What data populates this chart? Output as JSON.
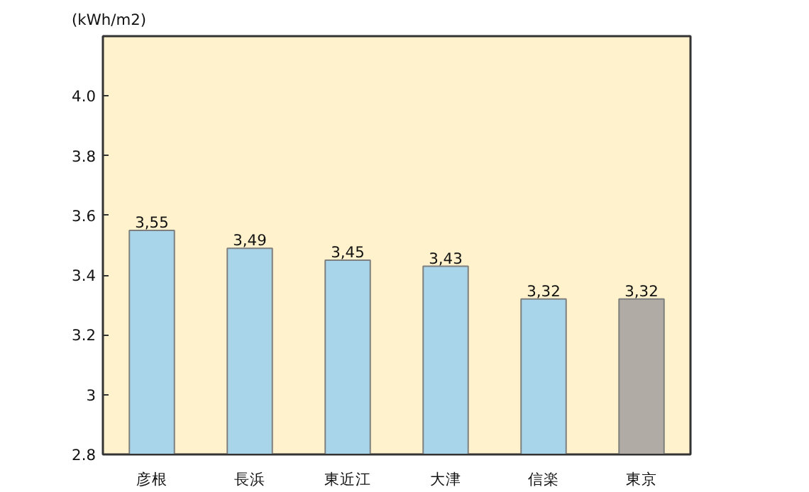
{
  "chart_data": {
    "type": "bar",
    "ylabel": "(kWh/m2)",
    "categories": [
      "彦根",
      "長浜",
      "東近江",
      "大津",
      "信楽",
      "東京"
    ],
    "values": [
      3.55,
      3.49,
      3.45,
      3.43,
      3.32,
      3.32
    ],
    "colors": [
      "#a9d5ea",
      "#a9d5ea",
      "#a9d5ea",
      "#a9d5ea",
      "#a9d5ea",
      "#b0aca5"
    ],
    "value_labels": [
      "3,55",
      "3,49",
      "3,45",
      "3,43",
      "3,32",
      "3,32"
    ],
    "ylim": [
      2.8,
      4.2
    ],
    "yticks": [
      2.8,
      3,
      3.2,
      3.4,
      3.6,
      3.8,
      {
        "value": 4.0,
        "label": "4.0"
      }
    ],
    "grid": false
  }
}
